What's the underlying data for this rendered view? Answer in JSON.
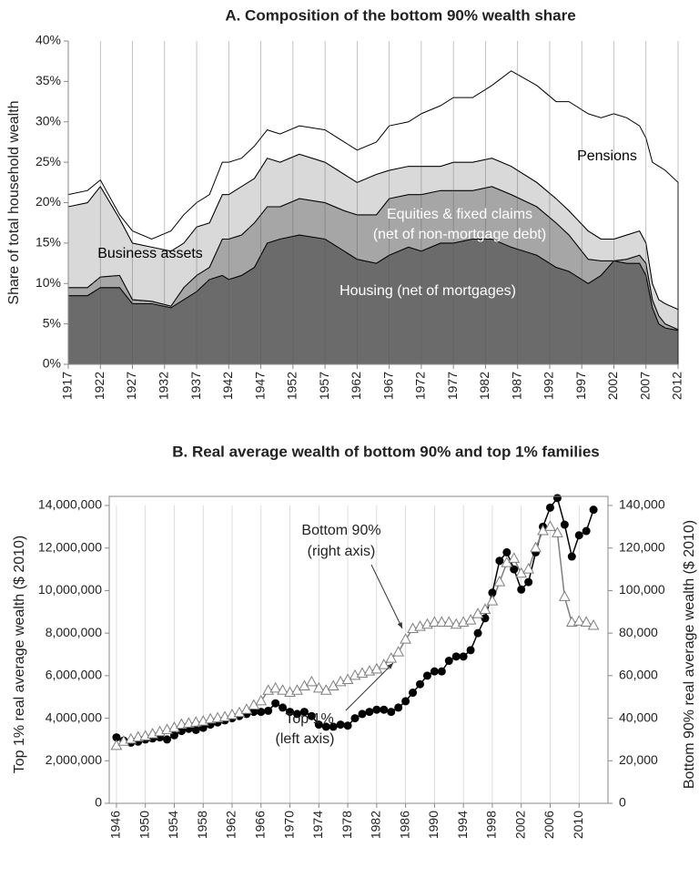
{
  "chart_data": [
    {
      "type": "area",
      "title": "A. Composition of the bottom 90% wealth share",
      "ylabel": "Share of total household wealth",
      "x": [
        1917,
        1920,
        1922,
        1925,
        1927,
        1930,
        1933,
        1935,
        1937,
        1939,
        1941,
        1942,
        1944,
        1946,
        1948,
        1950,
        1953,
        1957,
        1960,
        1962,
        1965,
        1967,
        1970,
        1972,
        1975,
        1977,
        1980,
        1983,
        1986,
        1990,
        1993,
        1995,
        1998,
        2000,
        2002,
        2004,
        2006,
        2007,
        2008,
        2009,
        2010,
        2012
      ],
      "series": [
        {
          "name": "Housing (net of mortgages)",
          "color": "#6b6b6b",
          "label_color": "#ffffff",
          "values": [
            8.5,
            8.5,
            9.5,
            9.5,
            7.5,
            7.5,
            7,
            8,
            9,
            10.5,
            11,
            10.5,
            11,
            12,
            15,
            15.5,
            16,
            15.5,
            14,
            13,
            12.5,
            13.5,
            14.5,
            14,
            15,
            15,
            15.5,
            15.5,
            14.5,
            13.5,
            12,
            11.5,
            10,
            11,
            12.8,
            12.5,
            12.5,
            11,
            7,
            5,
            4.5,
            4.2
          ]
        },
        {
          "name": "Equities & fixed claims",
          "color": "#a6a6a6",
          "label_color": "#ffffff",
          "values": [
            1,
            1,
            1.3,
            1.5,
            0.5,
            0.3,
            0.2,
            1.5,
            2,
            1.5,
            4.5,
            5,
            5,
            5.5,
            4.5,
            4,
            4.5,
            4.5,
            5,
            5.5,
            6,
            7,
            6.5,
            7,
            6.5,
            6.5,
            6,
            6.5,
            6.5,
            6,
            5.5,
            4.5,
            3,
            1.8,
            0,
            0.5,
            1,
            1.5,
            1,
            1,
            0.5,
            0.1
          ]
        },
        {
          "name": "Business assets",
          "color": "#d9d9d9",
          "label_color": "#000000",
          "values": [
            10,
            10.5,
            11.2,
            7,
            7,
            6.7,
            6.8,
            5.5,
            6,
            5.5,
            5.5,
            5.5,
            6,
            5.5,
            6,
            5.5,
            5.5,
            5,
            4.5,
            4,
            5,
            3.5,
            3.5,
            3.5,
            3,
            3.5,
            3.5,
            3.5,
            3.5,
            3,
            3,
            3,
            3.5,
            2.7,
            2.7,
            3,
            3,
            2.5,
            2,
            2,
            2.5,
            2.5
          ]
        },
        {
          "name": "Pensions",
          "color": "#ffffff",
          "label_color": "#000000",
          "values": [
            1.5,
            1.5,
            0.8,
            0.5,
            1.5,
            1,
            2.5,
            3.5,
            3,
            3.5,
            4,
            4,
            3.5,
            4,
            3.5,
            3.5,
            3.5,
            4,
            4,
            4,
            4,
            5.5,
            5.5,
            6.5,
            7.5,
            8,
            8,
            9,
            11.8,
            12,
            12,
            13.5,
            14.5,
            15,
            15.5,
            14.5,
            13,
            13,
            15,
            16.5,
            16.5,
            15.7
          ]
        }
      ],
      "annotations": [
        "(net of non-mortgage debt)"
      ],
      "xlim": [
        1917,
        2012
      ],
      "xticks": [
        1917,
        1922,
        1927,
        1932,
        1937,
        1942,
        1947,
        1952,
        1957,
        1962,
        1967,
        1972,
        1977,
        1982,
        1987,
        1992,
        1997,
        2002,
        2007,
        2012
      ],
      "ylim": [
        0,
        40
      ],
      "yticks": [
        {
          "value": 0,
          "label": "0%"
        },
        {
          "value": 5,
          "label": "5%"
        },
        {
          "value": 10,
          "label": "10%"
        },
        {
          "value": 15,
          "label": "15%"
        },
        {
          "value": 20,
          "label": "20%"
        },
        {
          "value": 25,
          "label": "25%"
        },
        {
          "value": 30,
          "label": "30%"
        },
        {
          "value": 35,
          "label": "35%"
        },
        {
          "value": 40,
          "label": "40%"
        }
      ],
      "grid": "x"
    },
    {
      "type": "line",
      "title": "B. Real average wealth of bottom 90% and top 1% families",
      "ylabel": "Top 1% real average wealth ($ 2010)",
      "y2label": "Bottom 90% real average wealth ($ 2010)",
      "x": [
        1946,
        1947,
        1948,
        1949,
        1950,
        1951,
        1952,
        1953,
        1954,
        1955,
        1956,
        1957,
        1958,
        1959,
        1960,
        1961,
        1962,
        1963,
        1964,
        1965,
        1966,
        1967,
        1968,
        1969,
        1970,
        1971,
        1972,
        1973,
        1974,
        1975,
        1976,
        1977,
        1978,
        1979,
        1980,
        1981,
        1982,
        1983,
        1984,
        1985,
        1986,
        1987,
        1988,
        1989,
        1990,
        1991,
        1992,
        1993,
        1994,
        1995,
        1996,
        1997,
        1998,
        1999,
        2000,
        2001,
        2002,
        2003,
        2004,
        2005,
        2006,
        2007,
        2008,
        2009,
        2010,
        2011,
        2012
      ],
      "series": [
        {
          "name": "Top 1%",
          "color": "#000000",
          "marker": "circle",
          "axis": "y",
          "values": [
            3100000,
            2950000,
            2850000,
            2900000,
            3000000,
            3050000,
            3100000,
            3000000,
            3200000,
            3400000,
            3500000,
            3450000,
            3550000,
            3700000,
            3800000,
            3900000,
            4000000,
            4100000,
            4200000,
            4300000,
            4300000,
            4350000,
            4700000,
            4500000,
            4300000,
            4200000,
            4300000,
            4100000,
            3700000,
            3600000,
            3600000,
            3700000,
            3650000,
            4000000,
            4200000,
            4300000,
            4400000,
            4400000,
            4300000,
            4500000,
            4800000,
            5200000,
            5600000,
            6000000,
            6200000,
            6200000,
            6700000,
            6900000,
            6900000,
            7200000,
            8000000,
            8700000,
            9900000,
            11400000,
            11800000,
            11000000,
            10050000,
            10400000,
            11800000,
            13000000,
            13900000,
            14350000,
            13100000,
            11600000,
            12600000,
            12800000,
            13800000
          ]
        },
        {
          "name": "Bottom 90%",
          "color": "#7f7f7f",
          "marker": "triangle",
          "axis": "y2",
          "values": [
            27000,
            29000,
            30000,
            31000,
            31500,
            32500,
            33500,
            34500,
            35500,
            37000,
            37500,
            38000,
            38500,
            39500,
            40000,
            40500,
            41500,
            42500,
            44000,
            46000,
            48000,
            53000,
            54000,
            53000,
            52000,
            53000,
            55000,
            57000,
            54000,
            53000,
            55000,
            57000,
            58000,
            60000,
            61000,
            62000,
            63000,
            65000,
            68000,
            71000,
            77000,
            82000,
            83000,
            84000,
            85000,
            85000,
            85000,
            84000,
            85000,
            86000,
            89000,
            91000,
            95000,
            104000,
            113000,
            115000,
            108000,
            110000,
            120000,
            128000,
            130000,
            127000,
            97000,
            85000,
            85500,
            85000,
            83500
          ]
        }
      ],
      "annotations": [
        "(left axis)",
        "(right axis)"
      ],
      "xlim": [
        1945,
        2014
      ],
      "xticks": [
        1946,
        1950,
        1954,
        1958,
        1962,
        1966,
        1970,
        1974,
        1978,
        1982,
        1986,
        1990,
        1994,
        1998,
        2002,
        2006,
        2010
      ],
      "ylim": [
        0,
        14000000
      ],
      "yticks": [
        0,
        {
          "value": 2000000,
          "label": "2,000,000"
        },
        {
          "value": 4000000,
          "label": "4,000,000"
        },
        {
          "value": 6000000,
          "label": "6,000,000"
        },
        {
          "value": 8000000,
          "label": "8,000,000"
        },
        {
          "value": 10000000,
          "label": "10,000,000"
        },
        {
          "value": 12000000,
          "label": "12,000,000"
        },
        {
          "value": 14000000,
          "label": "14,000,000"
        }
      ],
      "y2lim": [
        0,
        140000
      ],
      "y2ticks": [
        0,
        {
          "value": 20000,
          "label": "20,000"
        },
        {
          "value": 40000,
          "label": "40,000"
        },
        {
          "value": 60000,
          "label": "60,000"
        },
        {
          "value": 80000,
          "label": "80,000"
        },
        {
          "value": 100000,
          "label": "100,000"
        },
        {
          "value": 120000,
          "label": "120,000"
        },
        {
          "value": 140000,
          "label": "140,000"
        }
      ],
      "grid": "x"
    }
  ]
}
